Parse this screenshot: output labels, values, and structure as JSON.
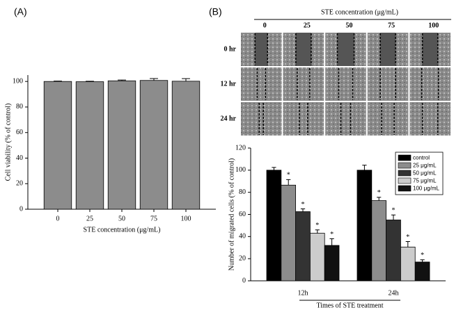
{
  "chart_data": [
    {
      "type": "bar",
      "panel_label": "(A)",
      "y_label": "Cell viability (% of control)",
      "x_label": "STE concentration (μg/mL)",
      "categories": [
        "0",
        "25",
        "50",
        "75",
        "100"
      ],
      "values": [
        100,
        99.8,
        100.5,
        100.8,
        100.2
      ],
      "errors": [
        0.3,
        0.4,
        0.6,
        1.5,
        2
      ],
      "color": "#8c8c8c",
      "ylim": [
        0,
        105
      ],
      "yticks": [
        0,
        20,
        40,
        60,
        80,
        100
      ]
    },
    {
      "type": "bar",
      "panel_label": "(B)",
      "y_label": "Number of migrated cells (% of control)",
      "x_label": "Times of STE treatment",
      "categories": [
        "12h",
        "24h"
      ],
      "series": [
        {
          "name": "control",
          "color": "#000000",
          "values": [
            100,
            100
          ],
          "errors": [
            2.5,
            4.5
          ]
        },
        {
          "name": "25 μg/mL",
          "color": "#8c8c8c",
          "values": [
            86.5,
            72.5
          ],
          "errors": [
            5,
            3
          ],
          "marks": [
            "*",
            "*"
          ]
        },
        {
          "name": "50 μg/mL",
          "color": "#333333",
          "values": [
            62.5,
            55
          ],
          "errors": [
            2.5,
            4.5
          ],
          "marks": [
            "*",
            "*"
          ]
        },
        {
          "name": "75 μg/mL",
          "color": "#cccccc",
          "values": [
            43,
            30.5
          ],
          "errors": [
            3,
            5
          ],
          "marks": [
            "*",
            "*"
          ]
        },
        {
          "name": "100 μg/mL",
          "color": "#111111",
          "values": [
            32,
            17
          ],
          "errors": [
            6,
            2
          ],
          "marks": [
            "*",
            "*"
          ]
        }
      ],
      "ylim": [
        0,
        120
      ],
      "yticks": [
        0,
        20,
        40,
        60,
        80,
        100,
        120
      ],
      "legend": "upper right"
    }
  ],
  "image_grid": {
    "title": "STE concentration (μg/mL)",
    "columns": [
      "0",
      "25",
      "50",
      "75",
      "100"
    ],
    "rows": [
      "0 hr",
      "12 hr",
      "24 hr"
    ]
  }
}
